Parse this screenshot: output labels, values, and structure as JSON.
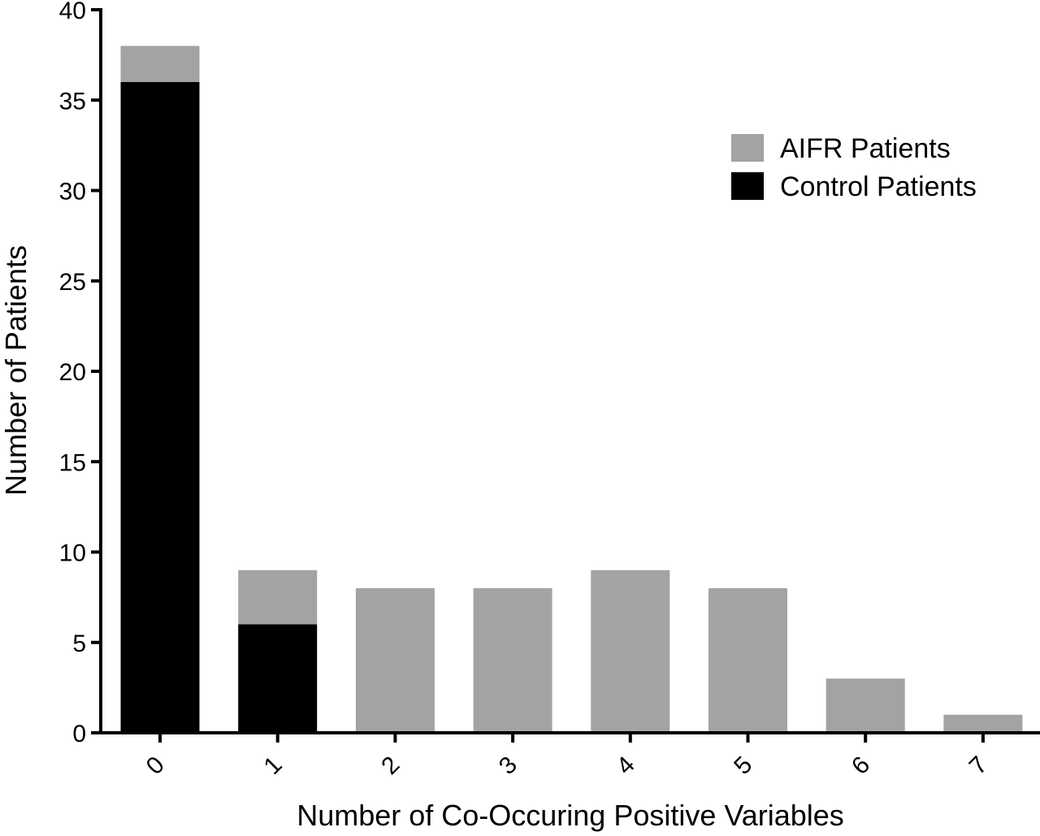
{
  "chart_data": {
    "type": "bar",
    "stacked": true,
    "title": "",
    "xlabel": "Number of Co-Occuring Positive Variables",
    "ylabel": "Number of Patients",
    "categories": [
      "0",
      "1",
      "2",
      "3",
      "4",
      "5",
      "6",
      "7"
    ],
    "yticks": [
      "0",
      "5",
      "10",
      "15",
      "20",
      "25",
      "30",
      "35",
      "40"
    ],
    "ylim": [
      0,
      40
    ],
    "grid": false,
    "legend_position": "top-right",
    "series": [
      {
        "name": "Control Patients",
        "color": "#000000",
        "values": [
          36,
          6,
          0,
          0,
          0,
          0,
          0,
          0
        ]
      },
      {
        "name": "AIFR Patients",
        "color": "#a3a3a3",
        "values": [
          2,
          3,
          8,
          8,
          9,
          8,
          3,
          1
        ]
      }
    ],
    "legend": [
      {
        "label": "AIFR Patients",
        "color": "#a3a3a3"
      },
      {
        "label": "Control Patients",
        "color": "#000000"
      }
    ]
  }
}
